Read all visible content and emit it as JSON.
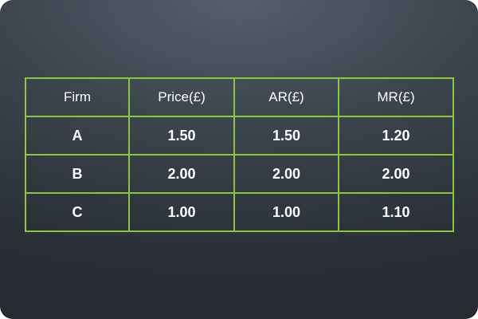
{
  "table": {
    "headers": [
      "Firm",
      "Price(£)",
      "AR(£)",
      "MR(£)"
    ],
    "rows": [
      [
        "A",
        "1.50",
        "1.50",
        "1.20"
      ],
      [
        "B",
        "2.00",
        "2.00",
        "2.00"
      ],
      [
        "C",
        "1.00",
        "1.00",
        "1.10"
      ]
    ]
  },
  "colors": {
    "border": "#8cc63f",
    "text": "#ffffff",
    "background_top": "#55606b",
    "background_bottom": "#262b31"
  }
}
